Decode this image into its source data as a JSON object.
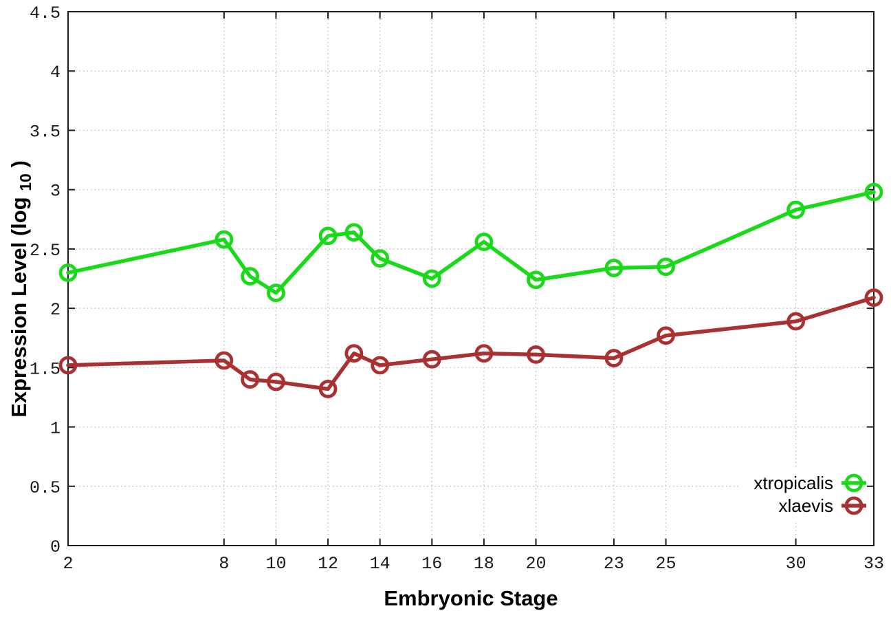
{
  "chart_data": {
    "type": "line",
    "title": "",
    "xlabel": "Embryonic Stage",
    "ylabel_parts": {
      "main": "Expression Level (log",
      "sub": "10",
      "end": ")"
    },
    "xlim": [
      2,
      33
    ],
    "ylim": [
      0,
      4.5
    ],
    "grid": true,
    "grid_style": "dotted",
    "xticks": [
      "2",
      "8",
      "10",
      "12",
      "14",
      "16",
      "18",
      "20",
      "23",
      "25",
      "30",
      "33"
    ],
    "yticks": [
      "0",
      "0.5",
      "1",
      "1.5",
      "2",
      "2.5",
      "3",
      "3.5",
      "4",
      "4.5"
    ],
    "x": [
      2,
      8,
      9,
      10,
      12,
      13,
      14,
      16,
      18,
      20,
      23,
      25,
      30,
      33
    ],
    "series": [
      {
        "name": "xtropicalis",
        "color": "#19DA19",
        "marker": "open-circle",
        "values": [
          2.3,
          2.58,
          2.27,
          2.13,
          2.61,
          2.64,
          2.42,
          2.25,
          2.56,
          2.24,
          2.34,
          2.35,
          2.83,
          2.98
        ]
      },
      {
        "name": "xlaevis",
        "color": "#A93131",
        "marker": "open-circle",
        "values": [
          1.52,
          1.56,
          1.4,
          1.38,
          1.32,
          1.62,
          1.52,
          1.57,
          1.62,
          1.61,
          1.58,
          1.77,
          1.89,
          2.09
        ]
      }
    ],
    "legend_position": "bottom-right-inside",
    "legend_opaque": true,
    "colors": {
      "background": "#ffffff",
      "border": "#1c1c1c",
      "grid": "#b3b3b3",
      "tick_text": "#1a1a1a"
    }
  }
}
